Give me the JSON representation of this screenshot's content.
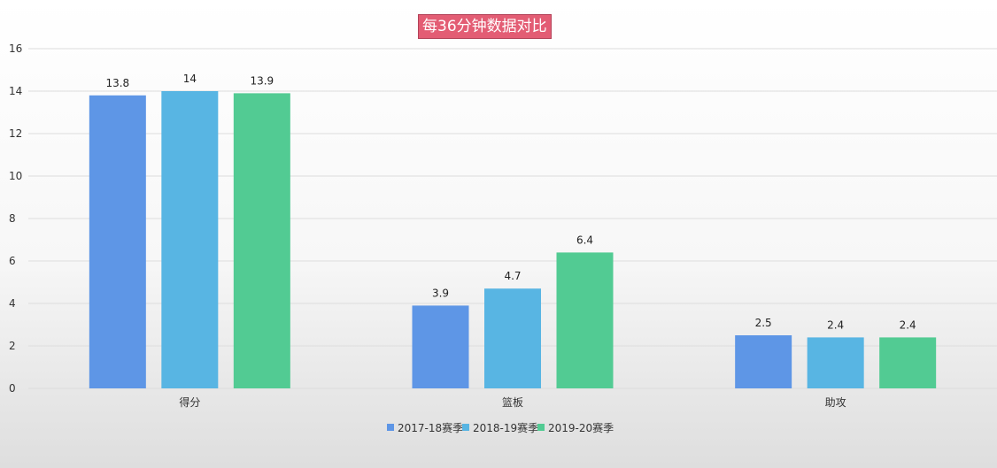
{
  "chart_data": {
    "type": "bar",
    "title": "每36分钟数据对比",
    "categories": [
      "得分",
      "篮板",
      "助攻"
    ],
    "series": [
      {
        "name": "2017-18赛季",
        "values": [
          13.8,
          3.9,
          2.5
        ],
        "color": "#5e96e6"
      },
      {
        "name": "2018-19赛季",
        "values": [
          14,
          4.7,
          2.4
        ],
        "color": "#58b5e3"
      },
      {
        "name": "2019-20赛季",
        "values": [
          13.9,
          6.4,
          2.4
        ],
        "color": "#52cb93"
      }
    ],
    "ylim": [
      0,
      16
    ],
    "yticks": [
      0,
      2,
      4,
      6,
      8,
      10,
      12,
      14,
      16
    ],
    "grid": true,
    "legend": "bottom-center"
  }
}
